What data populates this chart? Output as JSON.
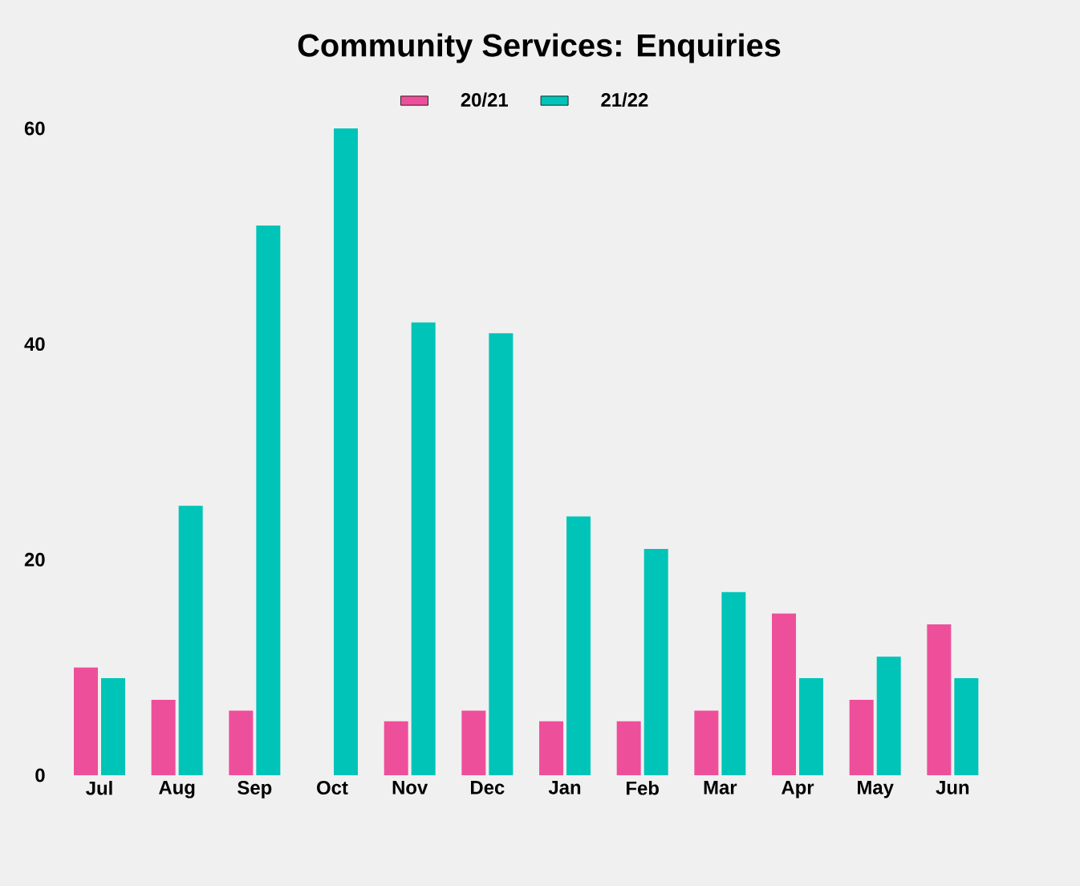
{
  "chart_data": {
    "type": "bar",
    "title": "Community Services: Enquiries",
    "categories": [
      "Jul",
      "Aug",
      "Sep",
      "Oct",
      "Nov",
      "Dec",
      "Jan",
      "Feb",
      "Mar",
      "Apr",
      "May",
      "Jun"
    ],
    "series": [
      {
        "name": "20/21",
        "color": "#ee4f9a",
        "values": [
          10,
          7,
          6,
          0,
          5,
          6,
          5,
          5,
          6,
          15,
          7,
          14
        ]
      },
      {
        "name": "21/22",
        "color": "#00c4b8",
        "values": [
          9,
          25,
          51,
          60,
          42,
          41,
          24,
          21,
          17,
          9,
          11,
          9
        ]
      }
    ],
    "ylim": [
      0,
      60
    ],
    "yticks": [
      0,
      20,
      40,
      60
    ],
    "legend": "top",
    "grid": false
  }
}
